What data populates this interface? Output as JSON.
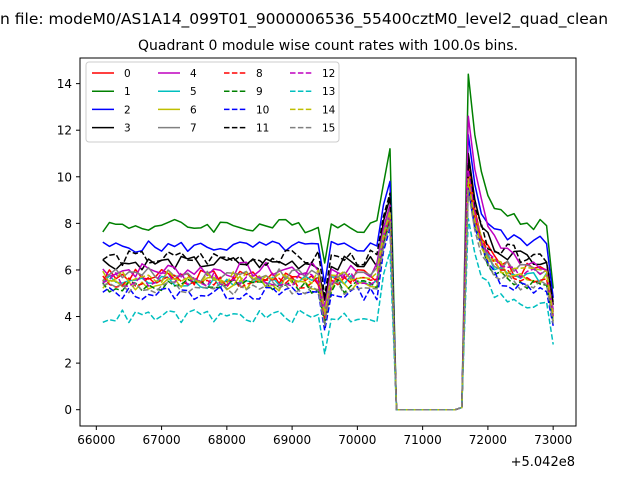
{
  "figure": {
    "suptitle": "n file: modeM0/AS1A14_099T01_9000006536_55400cztM0_level2_quad_clean",
    "title": "Quadrant 0 module wise count rates with 100.0s bins.",
    "offset_label": "+5.042e8"
  },
  "chart_data": {
    "type": "line",
    "title": "Quadrant 0 module wise count rates with 100.0s bins.",
    "xlabel": "",
    "ylabel": "",
    "x_offset": 504200000,
    "xlim": [
      65750,
      73350
    ],
    "ylim": [
      -0.7,
      15.1
    ],
    "xticks": [
      66000,
      67000,
      68000,
      69000,
      70000,
      71000,
      72000,
      73000
    ],
    "yticks": [
      0,
      2,
      4,
      6,
      8,
      10,
      12,
      14
    ],
    "xtick_labels": [
      "66000",
      "67000",
      "68000",
      "69000",
      "70000",
      "71000",
      "72000",
      "73000"
    ],
    "ytick_labels": [
      "0",
      "2",
      "4",
      "6",
      "8",
      "10",
      "12",
      "14"
    ],
    "grid": false,
    "legend": {
      "placement": "top-left",
      "columns": 4
    },
    "x": [
      {
        "start": 66100,
        "stop": 70500,
        "step": 100
      },
      {
        "start": 70600,
        "stop": 71500,
        "step": 100
      },
      {
        "start": 71600,
        "stop": 73000,
        "step": 100
      }
    ],
    "series": [
      {
        "name": "0",
        "color": "#ff0000",
        "dash": "solid",
        "base": 5.7,
        "noise": 0.35,
        "flare": 10.5,
        "tail": 5.9,
        "end": 4.2
      },
      {
        "name": "1",
        "color": "#008000",
        "dash": "solid",
        "base": 7.9,
        "noise": 0.3,
        "flare": 14.4,
        "tail": 7.9,
        "end": 5.2,
        "pre_flare": 11.2
      },
      {
        "name": "2",
        "color": "#0000ff",
        "dash": "solid",
        "base": 7.0,
        "noise": 0.25,
        "flare": 11.8,
        "tail": 7.2,
        "end": 4.8
      },
      {
        "name": "3",
        "color": "#000000",
        "dash": "solid",
        "base": 6.3,
        "noise": 0.3,
        "flare": 11.0,
        "tail": 6.5,
        "end": 4.5
      },
      {
        "name": "4",
        "color": "#bf00bf",
        "dash": "solid",
        "base": 6.0,
        "noise": 0.35,
        "flare": 12.6,
        "tail": 6.3,
        "end": 4.3
      },
      {
        "name": "5",
        "color": "#00bfbf",
        "dash": "solid",
        "base": 5.5,
        "noise": 0.3,
        "flare": 10.0,
        "tail": 5.6,
        "end": 4.0
      },
      {
        "name": "6",
        "color": "#bfbf00",
        "dash": "solid",
        "base": 5.4,
        "noise": 0.35,
        "flare": 10.2,
        "tail": 5.6,
        "end": 3.8
      },
      {
        "name": "7",
        "color": "#808080",
        "dash": "solid",
        "base": 5.8,
        "noise": 0.3,
        "flare": 9.8,
        "tail": 5.9,
        "end": 4.1
      },
      {
        "name": "8",
        "color": "#ff0000",
        "dash": "dashed",
        "base": 5.5,
        "noise": 0.3,
        "flare": 10.0,
        "tail": 5.6,
        "end": 3.9
      },
      {
        "name": "9",
        "color": "#008000",
        "dash": "dashed",
        "base": 5.3,
        "noise": 0.3,
        "flare": 9.6,
        "tail": 5.4,
        "end": 3.8
      },
      {
        "name": "10",
        "color": "#0000ff",
        "dash": "dashed",
        "base": 5.0,
        "noise": 0.3,
        "flare": 9.5,
        "tail": 5.2,
        "end": 3.6
      },
      {
        "name": "11",
        "color": "#000000",
        "dash": "dashed",
        "base": 6.5,
        "noise": 0.35,
        "flare": 10.6,
        "tail": 6.6,
        "end": 4.6
      },
      {
        "name": "12",
        "color": "#bf00bf",
        "dash": "dashed",
        "base": 5.6,
        "noise": 0.3,
        "flare": 10.3,
        "tail": 5.7,
        "end": 4.0
      },
      {
        "name": "13",
        "color": "#00bfbf",
        "dash": "dashed",
        "base": 4.0,
        "noise": 0.3,
        "flare": 8.2,
        "tail": 4.4,
        "end": 2.8
      },
      {
        "name": "14",
        "color": "#bfbf00",
        "dash": "dashed",
        "base": 5.7,
        "noise": 0.3,
        "flare": 9.9,
        "tail": 5.8,
        "end": 4.0
      },
      {
        "name": "15",
        "color": "#808080",
        "dash": "dashed",
        "base": 5.2,
        "noise": 0.3,
        "flare": 9.4,
        "tail": 5.3,
        "end": 3.7
      }
    ]
  }
}
